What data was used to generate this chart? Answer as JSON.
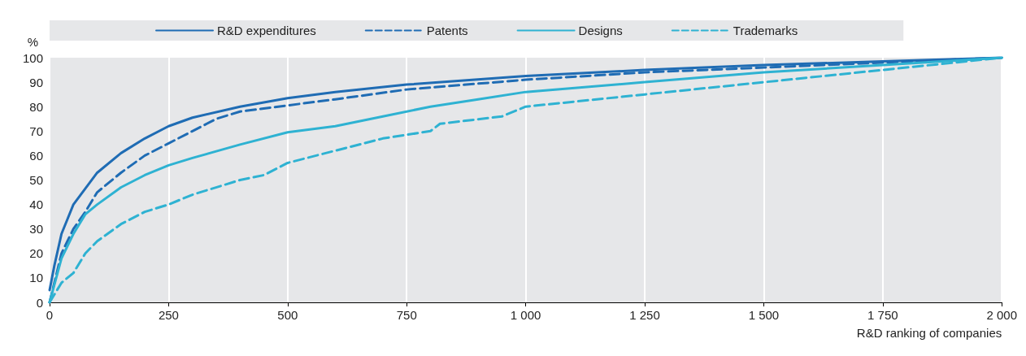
{
  "chart_data": {
    "type": "line",
    "ylabel": "%",
    "xlabel": "R&D ranking of companies",
    "xlim": [
      0,
      2000
    ],
    "ylim": [
      0,
      100
    ],
    "xticks": [
      0,
      250,
      500,
      750,
      {
        "value": 1000,
        "label": "1 000"
      },
      {
        "value": 1250,
        "label": "1 250"
      },
      {
        "value": 1500,
        "label": "1 500"
      },
      {
        "value": 1750,
        "label": "1 750"
      },
      {
        "value": 2000,
        "label": "2 000"
      }
    ],
    "yticks": [
      0,
      10,
      20,
      30,
      40,
      50,
      60,
      70,
      80,
      90,
      100
    ],
    "grid": "x",
    "legend": "top",
    "marker": "none",
    "series": [
      {
        "name": "R&D expenditures",
        "color": "#1f6cb4",
        "line_style": "solid",
        "x": [
          0,
          10,
          25,
          50,
          100,
          150,
          200,
          250,
          300,
          400,
          500,
          600,
          750,
          1000,
          1250,
          1500,
          1750,
          2000
        ],
        "values": [
          5,
          15,
          28,
          40,
          53,
          61,
          67,
          72,
          75.5,
          80,
          83.5,
          86,
          89,
          92.5,
          95,
          97,
          98.5,
          100
        ]
      },
      {
        "name": "Patents",
        "color": "#1f6cb4",
        "line_style": "dashed",
        "x": [
          0,
          25,
          50,
          75,
          100,
          150,
          200,
          250,
          300,
          350,
          400,
          500,
          600,
          750,
          1000,
          1250,
          1500,
          1750,
          2000
        ],
        "values": [
          0,
          20,
          30,
          37,
          45,
          53,
          60,
          65,
          70,
          75,
          78,
          80.5,
          83,
          87,
          91,
          94,
          96,
          98,
          100
        ]
      },
      {
        "name": "Designs",
        "color": "#2eb2d2",
        "line_style": "solid",
        "x": [
          0,
          25,
          50,
          75,
          100,
          150,
          200,
          250,
          300,
          400,
          500,
          600,
          700,
          800,
          900,
          1000,
          1250,
          1500,
          1750,
          2000
        ],
        "values": [
          0,
          18,
          28,
          36,
          40,
          47,
          52,
          56,
          59,
          64.5,
          69.5,
          72,
          76,
          80,
          83,
          86,
          90,
          94,
          97,
          100
        ]
      },
      {
        "name": "Trademarks",
        "color": "#2eb2d2",
        "line_style": "dashed",
        "x": [
          0,
          25,
          50,
          75,
          100,
          150,
          200,
          250,
          300,
          400,
          450,
          500,
          600,
          700,
          800,
          820,
          950,
          1000,
          1250,
          1500,
          1750,
          2000
        ],
        "values": [
          0,
          8,
          12,
          20,
          25,
          32,
          37,
          40,
          44,
          50,
          52,
          57,
          62,
          67,
          70,
          73,
          76,
          80,
          85,
          90,
          95,
          100
        ]
      }
    ]
  }
}
